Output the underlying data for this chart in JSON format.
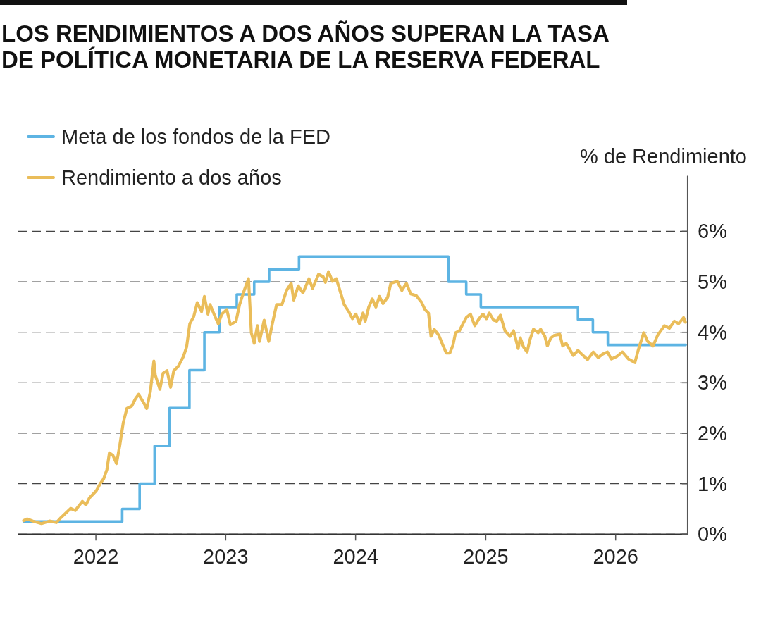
{
  "chart_data": {
    "type": "line",
    "title": "LOS RENDIMIENTOS A DOS AÑOS SUPERAN LA TASA DE POLÍTICA MONETARIA DE LA RESERVA FEDERAL",
    "ylabel": "% de Rendimiento",
    "xlim": [
      "2021-05-26",
      "2026-07-22"
    ],
    "xticks": [
      "2022",
      "2023",
      "2024",
      "2025",
      "2026"
    ],
    "ylim": [
      0,
      7.1
    ],
    "yticks": [
      {
        "value": 0,
        "label": "0%"
      },
      {
        "value": 1,
        "label": "1%"
      },
      {
        "value": 2,
        "label": "2%"
      },
      {
        "value": 3,
        "label": "3%"
      },
      {
        "value": 4,
        "label": "4%"
      },
      {
        "value": 5,
        "label": "5%"
      },
      {
        "value": 6,
        "label": "6%"
      }
    ],
    "grid": "y",
    "legend": "top left",
    "series": [
      {
        "name": "Meta de los fondos de la FED",
        "type": "step",
        "color": "#5db4e3",
        "x": [
          "2021-06-12",
          "2022-03-16",
          "2022-05-04",
          "2022-06-15",
          "2022-07-27",
          "2022-09-21",
          "2022-11-02",
          "2022-12-14",
          "2023-02-01",
          "2023-03-22",
          "2023-05-03",
          "2023-07-26",
          "2024-09-18",
          "2024-11-07",
          "2024-12-18",
          "2025-09-17",
          "2025-10-29",
          "2025-12-10",
          "2026-07-17"
        ],
        "values": [
          0.25,
          0.5,
          1.0,
          1.75,
          2.5,
          3.25,
          4.0,
          4.5,
          4.75,
          5.0,
          5.25,
          5.5,
          5.0,
          4.75,
          4.5,
          4.25,
          4.0,
          3.75,
          3.75
        ]
      },
      {
        "name": "Rendimiento a dos años",
        "type": "line",
        "color": "#eabd5a",
        "x": [
          "2021-06-12",
          "2021-06-22",
          "2021-07-08",
          "2021-08-01",
          "2021-08-24",
          "2021-09-12",
          "2021-09-25",
          "2021-10-22",
          "2021-11-04",
          "2021-11-14",
          "2021-11-24",
          "2021-12-04",
          "2021-12-14",
          "2022-01-02",
          "2022-01-13",
          "2022-01-23",
          "2022-02-01",
          "2022-02-08",
          "2022-02-18",
          "2022-02-28",
          "2022-03-09",
          "2022-03-19",
          "2022-03-29",
          "2022-04-12",
          "2022-04-22",
          "2022-05-01",
          "2022-05-15",
          "2022-05-24",
          "2022-06-03",
          "2022-06-13",
          "2022-06-17",
          "2022-06-30",
          "2022-07-09",
          "2022-07-20",
          "2022-07-30",
          "2022-08-08",
          "2022-08-21",
          "2022-09-04",
          "2022-09-13",
          "2022-09-22",
          "2022-10-03",
          "2022-10-13",
          "2022-10-25",
          "2022-11-02",
          "2022-11-12",
          "2022-11-18",
          "2022-12-02",
          "2022-12-11",
          "2022-12-21",
          "2023-01-04",
          "2023-01-14",
          "2023-01-30",
          "2023-02-09",
          "2023-02-22",
          "2023-03-06",
          "2023-03-14",
          "2023-03-22",
          "2023-03-31",
          "2023-04-06",
          "2023-04-19",
          "2023-05-02",
          "2023-05-12",
          "2023-05-24",
          "2023-06-08",
          "2023-06-21",
          "2023-07-04",
          "2023-07-11",
          "2023-07-24",
          "2023-08-06",
          "2023-08-23",
          "2023-09-02",
          "2023-09-19",
          "2023-10-02",
          "2023-10-08",
          "2023-10-17",
          "2023-10-28",
          "2023-11-08",
          "2023-11-17",
          "2023-11-30",
          "2023-12-13",
          "2023-12-23",
          "2024-01-02",
          "2024-01-12",
          "2024-01-22",
          "2024-01-28",
          "2024-02-07",
          "2024-02-17",
          "2024-02-27",
          "2024-03-08",
          "2024-03-18",
          "2024-03-31",
          "2024-04-09",
          "2024-04-27",
          "2024-05-10",
          "2024-05-23",
          "2024-06-04",
          "2024-06-19",
          "2024-07-04",
          "2024-07-14",
          "2024-07-24",
          "2024-07-31",
          "2024-08-09",
          "2024-08-22",
          "2024-09-02",
          "2024-09-12",
          "2024-09-22",
          "2024-10-01",
          "2024-10-08",
          "2024-10-19",
          "2024-10-29",
          "2024-11-07",
          "2024-11-19",
          "2024-12-01",
          "2024-12-13",
          "2024-12-24",
          "2025-01-03",
          "2025-01-11",
          "2025-01-23",
          "2025-02-01",
          "2025-02-11",
          "2025-02-24",
          "2025-03-10",
          "2025-03-20",
          "2025-04-02",
          "2025-04-08",
          "2025-04-17",
          "2025-04-27",
          "2025-05-05",
          "2025-05-15",
          "2025-05-28",
          "2025-06-04",
          "2025-06-16",
          "2025-06-23",
          "2025-07-03",
          "2025-07-13",
          "2025-07-28",
          "2025-08-05",
          "2025-08-15",
          "2025-08-25",
          "2025-09-04",
          "2025-09-17",
          "2025-09-27",
          "2025-10-14",
          "2025-10-30",
          "2025-11-13",
          "2025-11-26",
          "2025-12-09",
          "2025-12-20",
          "2026-01-04",
          "2026-01-20",
          "2026-02-06",
          "2026-02-24",
          "2026-03-06",
          "2026-03-21",
          "2026-04-01",
          "2026-04-16",
          "2026-04-29",
          "2026-05-18",
          "2026-06-01",
          "2026-06-15",
          "2026-06-27",
          "2026-07-11",
          "2026-07-16"
        ],
        "values": [
          0.27,
          0.3,
          0.26,
          0.21,
          0.26,
          0.23,
          0.33,
          0.51,
          0.47,
          0.56,
          0.65,
          0.58,
          0.72,
          0.86,
          1.0,
          1.1,
          1.28,
          1.61,
          1.56,
          1.4,
          1.75,
          2.21,
          2.49,
          2.54,
          2.68,
          2.77,
          2.61,
          2.49,
          2.82,
          3.43,
          3.15,
          2.87,
          3.19,
          3.24,
          2.91,
          3.24,
          3.33,
          3.52,
          3.71,
          4.17,
          4.31,
          4.59,
          4.41,
          4.71,
          4.36,
          4.55,
          4.31,
          4.17,
          4.36,
          4.45,
          4.15,
          4.22,
          4.55,
          4.83,
          5.06,
          3.99,
          3.78,
          4.13,
          3.82,
          4.24,
          3.82,
          4.17,
          4.55,
          4.55,
          4.83,
          4.97,
          4.64,
          4.92,
          4.78,
          5.06,
          4.87,
          5.15,
          5.1,
          4.99,
          5.2,
          5.01,
          5.06,
          4.85,
          4.55,
          4.41,
          4.27,
          4.36,
          4.17,
          4.38,
          4.22,
          4.5,
          4.66,
          4.5,
          4.71,
          4.57,
          4.69,
          4.97,
          5.01,
          4.83,
          4.97,
          4.76,
          4.73,
          4.6,
          4.45,
          4.38,
          3.92,
          4.06,
          3.94,
          3.75,
          3.59,
          3.59,
          3.75,
          3.99,
          4.03,
          4.17,
          4.29,
          4.36,
          4.13,
          4.27,
          4.36,
          4.27,
          4.38,
          4.24,
          4.22,
          4.34,
          4.03,
          3.92,
          4.03,
          3.68,
          3.89,
          3.71,
          3.61,
          3.85,
          4.06,
          3.99,
          4.06,
          3.92,
          3.73,
          3.89,
          3.94,
          3.96,
          3.73,
          3.78,
          3.66,
          3.54,
          3.64,
          3.57,
          3.46,
          3.61,
          3.5,
          3.57,
          3.61,
          3.47,
          3.52,
          3.61,
          3.47,
          3.4,
          3.66,
          3.99,
          3.82,
          3.73,
          3.94,
          4.13,
          4.08,
          4.22,
          4.17,
          4.29,
          4.2
        ]
      }
    ]
  }
}
